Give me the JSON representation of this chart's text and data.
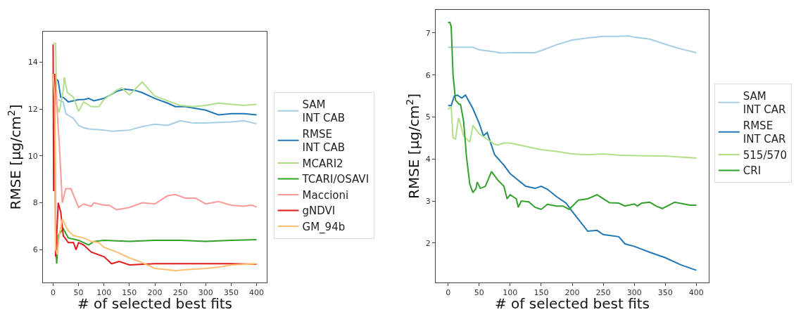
{
  "chart_data": [
    {
      "type": "line",
      "xlabel": "# of selected best fits",
      "ylabel": "RMSE [μg/cm$^{2}$]",
      "xlim": [
        -20,
        420
      ],
      "ylim": [
        4.6,
        15.3
      ],
      "xticks": [
        0,
        50,
        100,
        150,
        200,
        250,
        300,
        350,
        400
      ],
      "yticks": [
        6,
        8,
        10,
        12,
        14
      ],
      "legend": "right",
      "series": [
        {
          "name": "SAM\nINT CAB",
          "color": "#a6cee3",
          "x": [
            10,
            20,
            25,
            40,
            50,
            60,
            70,
            100,
            115,
            150,
            175,
            200,
            225,
            250,
            275,
            300,
            350,
            375,
            400
          ],
          "values": [
            12.4,
            12.3,
            11.8,
            11.6,
            11.3,
            11.2,
            11.15,
            11.1,
            11.05,
            11.1,
            11.25,
            11.35,
            11.3,
            11.5,
            11.4,
            11.4,
            11.45,
            11.5,
            11.37
          ]
        },
        {
          "name": "RMSE\nINT CAB",
          "color": "#1f78b4",
          "x": [
            5,
            10,
            15,
            20,
            30,
            50,
            60,
            70,
            80,
            100,
            125,
            140,
            160,
            175,
            200,
            225,
            240,
            260,
            300,
            325,
            350,
            375,
            400
          ],
          "values": [
            13.3,
            13.2,
            12.5,
            12.5,
            12.3,
            12.4,
            12.4,
            12.45,
            12.35,
            12.45,
            12.75,
            12.85,
            12.8,
            12.7,
            12.45,
            12.25,
            12.1,
            12.1,
            11.95,
            11.75,
            11.8,
            11.8,
            11.75
          ]
        },
        {
          "name": "MCARI2",
          "color": "#b2df8a",
          "x": [
            0,
            5,
            7,
            12,
            20,
            22,
            28,
            40,
            50,
            60,
            75,
            90,
            100,
            125,
            135,
            150,
            175,
            200,
            225,
            250,
            275,
            300,
            325,
            350,
            375,
            400
          ],
          "values": [
            14.8,
            14.8,
            12.2,
            11.85,
            12.8,
            13.35,
            12.7,
            12.5,
            11.9,
            12.3,
            12.1,
            12.1,
            12.4,
            12.8,
            12.9,
            12.6,
            13.15,
            12.55,
            12.35,
            12.15,
            12.1,
            12.15,
            12.25,
            12.2,
            12.15,
            12.2
          ]
        },
        {
          "name": "TCARI/OSAVI",
          "color": "#33a02c",
          "x": [
            5,
            7,
            10,
            20,
            30,
            50,
            70,
            80,
            100,
            150,
            200,
            250,
            300,
            350,
            400
          ],
          "values": [
            6.2,
            5.4,
            6.6,
            6.9,
            6.5,
            6.4,
            6.2,
            6.35,
            6.4,
            6.35,
            6.4,
            6.4,
            6.35,
            6.4,
            6.43
          ]
        },
        {
          "name": "Maccioni",
          "color": "#fb9a99",
          "x": [
            0,
            5,
            10,
            12,
            18,
            25,
            35,
            50,
            60,
            75,
            80,
            100,
            110,
            125,
            150,
            175,
            200,
            225,
            240,
            260,
            280,
            300,
            325,
            350,
            375,
            390,
            400
          ],
          "values": [
            13.4,
            13.1,
            11.2,
            10.6,
            8.0,
            8.6,
            8.6,
            7.8,
            7.95,
            7.85,
            8.0,
            7.9,
            7.9,
            7.7,
            7.8,
            8.0,
            7.95,
            8.3,
            8.35,
            8.2,
            8.2,
            7.95,
            8.05,
            7.9,
            7.85,
            7.9,
            7.82
          ]
        },
        {
          "name": "gNDVI",
          "color": "#e31a1c",
          "x": [
            0,
            1,
            3,
            5,
            10,
            15,
            20,
            30,
            40,
            45,
            50,
            60,
            75,
            100,
            115,
            130,
            150,
            200,
            250,
            300,
            350,
            400
          ],
          "values": [
            14.75,
            8.5,
            13.5,
            5.7,
            8.0,
            7.6,
            6.6,
            6.3,
            6.3,
            6.0,
            6.3,
            6.2,
            5.9,
            5.7,
            5.4,
            5.5,
            5.35,
            5.4,
            5.4,
            5.4,
            5.4,
            5.38
          ]
        },
        {
          "name": "GM_94b",
          "color": "#fdbf6f",
          "x": [
            0,
            3,
            5,
            8,
            12,
            18,
            30,
            40,
            60,
            75,
            90,
            100,
            125,
            150,
            175,
            200,
            225,
            240,
            260,
            300,
            325,
            350,
            400
          ],
          "values": [
            13.5,
            12.5,
            6.0,
            5.8,
            6.6,
            7.3,
            6.8,
            6.6,
            6.5,
            6.35,
            6.3,
            6.1,
            5.9,
            5.65,
            5.45,
            5.2,
            5.15,
            5.1,
            5.15,
            5.2,
            5.25,
            5.35,
            5.4
          ]
        }
      ]
    },
    {
      "type": "line",
      "xlabel": "# of selected best fits",
      "ylabel": "RMSE [μg/cm$^{2}$]",
      "xlim": [
        -20,
        420
      ],
      "ylim": [
        1.06,
        7.55
      ],
      "xticks": [
        0,
        50,
        100,
        150,
        200,
        250,
        300,
        350,
        400
      ],
      "yticks": [
        2,
        3,
        4,
        5,
        6,
        7
      ],
      "legend": "right",
      "series": [
        {
          "name": "SAM\nINT CAR",
          "color": "#a6cee3",
          "x": [
            0,
            40,
            50,
            75,
            85,
            100,
            140,
            150,
            175,
            200,
            225,
            250,
            275,
            290,
            300,
            325,
            350,
            375,
            400
          ],
          "values": [
            6.66,
            6.66,
            6.6,
            6.55,
            6.52,
            6.53,
            6.53,
            6.58,
            6.72,
            6.83,
            6.88,
            6.92,
            6.92,
            6.93,
            6.9,
            6.85,
            6.73,
            6.62,
            6.53
          ]
        },
        {
          "name": "RMSE\nINT CAR",
          "color": "#1f78b4",
          "x": [
            0,
            5,
            10,
            15,
            22,
            28,
            40,
            50,
            57,
            63,
            75,
            90,
            100,
            125,
            140,
            150,
            160,
            175,
            190,
            200,
            225,
            240,
            250,
            275,
            285,
            300,
            325,
            350,
            375,
            400
          ],
          "values": [
            5.27,
            5.27,
            5.5,
            5.52,
            5.45,
            5.52,
            5.2,
            4.85,
            4.55,
            4.63,
            4.1,
            3.85,
            3.65,
            3.35,
            3.3,
            3.35,
            3.28,
            3.1,
            2.95,
            2.75,
            2.28,
            2.3,
            2.2,
            2.15,
            1.98,
            1.92,
            1.78,
            1.65,
            1.48,
            1.35
          ]
        },
        {
          "name": "515/570",
          "color": "#b2df8a",
          "x": [
            0,
            5,
            8,
            12,
            15,
            17,
            25,
            35,
            40,
            50,
            75,
            80,
            90,
            100,
            125,
            150,
            175,
            200,
            225,
            250,
            275,
            300,
            350,
            400
          ],
          "values": [
            5.18,
            5.25,
            4.5,
            4.48,
            4.8,
            4.98,
            4.55,
            4.4,
            4.8,
            4.6,
            4.35,
            4.33,
            4.38,
            4.38,
            4.3,
            4.22,
            4.18,
            4.12,
            4.1,
            4.12,
            4.09,
            4.08,
            4.07,
            4.02
          ]
        },
        {
          "name": "CRI",
          "color": "#33a02c",
          "x": [
            0,
            3,
            5,
            8,
            12,
            18,
            20,
            25,
            30,
            35,
            40,
            45,
            47,
            52,
            60,
            70,
            80,
            90,
            95,
            100,
            110,
            113,
            118,
            130,
            140,
            150,
            160,
            175,
            185,
            195,
            210,
            225,
            240,
            260,
            275,
            285,
            300,
            305,
            312,
            325,
            335,
            345,
            365,
            390,
            400
          ],
          "values": [
            7.25,
            7.25,
            7.15,
            6.0,
            5.4,
            5.3,
            5.3,
            4.9,
            4.0,
            3.4,
            3.2,
            3.3,
            3.45,
            3.3,
            3.35,
            3.7,
            3.5,
            3.35,
            3.05,
            3.15,
            3.05,
            2.85,
            3.0,
            2.98,
            2.85,
            2.8,
            2.92,
            2.88,
            2.88,
            2.8,
            3.02,
            3.05,
            3.15,
            2.96,
            2.95,
            2.88,
            2.93,
            2.88,
            2.95,
            2.97,
            2.88,
            2.82,
            2.97,
            2.9,
            2.9
          ]
        }
      ]
    }
  ]
}
